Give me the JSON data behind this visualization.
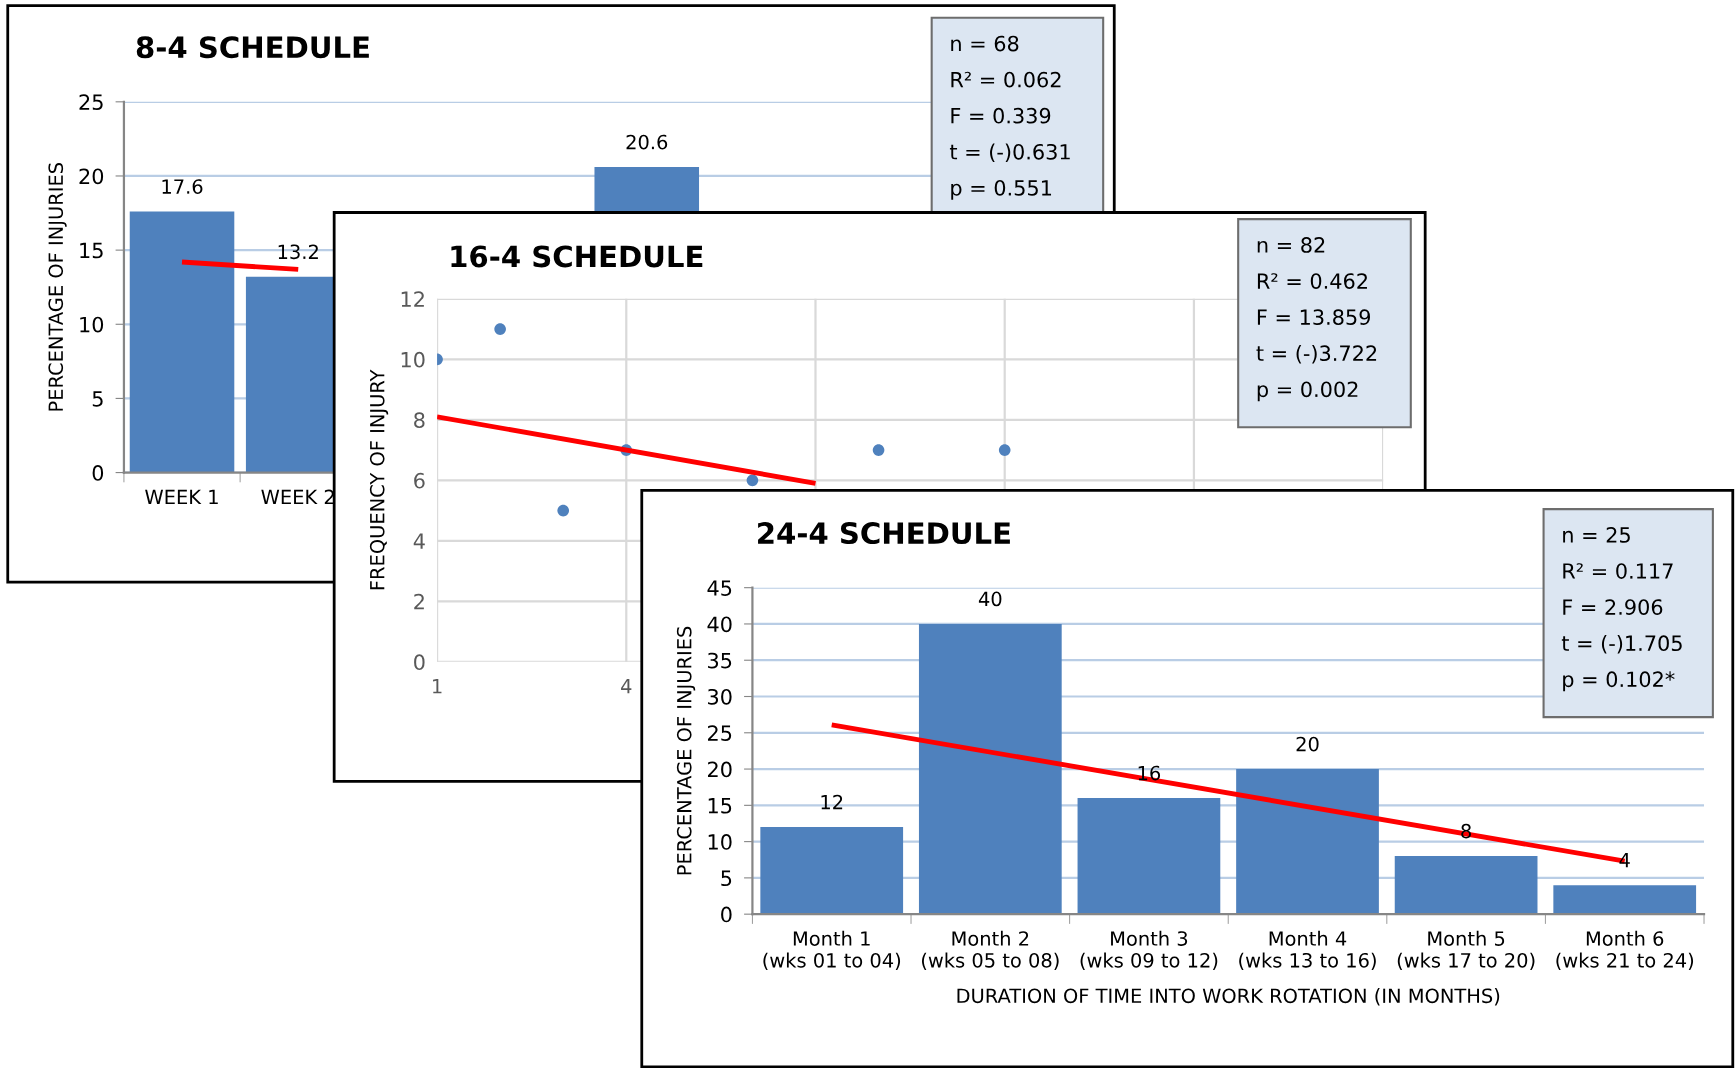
{
  "chart_data": [
    {
      "type": "bar",
      "title": "8-4 SCHEDULE",
      "ylabel": "PERCENTAGE OF INJURIES",
      "categories": [
        "WEEK 1",
        "WEEK 2",
        null,
        null,
        null,
        null,
        null,
        null
      ],
      "series": [
        {
          "type": "bar",
          "color": "#4f81bd",
          "values": [
            17.6,
            13.2,
            null,
            null,
            20.6,
            null,
            null,
            null
          ],
          "value_labels": [
            "17.6",
            "13.2",
            null,
            null,
            "20.6",
            null,
            null,
            null
          ]
        },
        {
          "type": "line",
          "color": "#ff0000",
          "x": [
            "WEEK 1",
            "WEEK 2"
          ],
          "values": [
            14.2,
            13.7
          ]
        }
      ],
      "ylim": [
        0,
        25
      ],
      "yticks": [
        0,
        5,
        10,
        15,
        20,
        25
      ],
      "grid": "y",
      "annotations": [
        "n = 68",
        "R² = 0.062",
        "F = 0.339",
        "t = (-)0.631",
        "p = 0.551"
      ]
    },
    {
      "type": "scatter",
      "title": "16-4 SCHEDULE",
      "ylabel": "FREQUENCY OF INJURY",
      "series": [
        {
          "type": "scatter",
          "color": "#4f81bd",
          "marker": "circle",
          "x": [
            1,
            2,
            3,
            4,
            6,
            8,
            10
          ],
          "values": [
            10,
            11,
            5,
            7,
            6,
            7,
            7
          ]
        },
        {
          "type": "line",
          "color": "#ff0000",
          "x": [
            1,
            7
          ],
          "values": [
            8.1,
            5.9
          ]
        }
      ],
      "xlim": [
        1,
        16
      ],
      "xticks": [
        1,
        4,
        {
          "value": 7,
          "label": null
        },
        {
          "value": 10,
          "label": null
        },
        {
          "value": 13,
          "label": null
        },
        {
          "value": 16,
          "label": null
        }
      ],
      "ylim": [
        0,
        12
      ],
      "yticks": [
        0,
        2,
        4,
        6,
        8,
        10,
        12
      ],
      "grid": true,
      "annotations": [
        "n = 82",
        "R² = 0.462",
        "F = 13.859",
        "t = (-)3.722",
        "p = 0.002"
      ]
    },
    {
      "type": "bar",
      "title": "24-4 SCHEDULE",
      "ylabel": "PERCENTAGE OF INJURIES",
      "xlabel": "DURATION OF TIME INTO WORK ROTATION (IN MONTHS)",
      "categories": [
        "Month 1\n(wks 01 to 04)",
        "Month 2\n(wks 05 to 08)",
        "Month 3\n(wks 09 to 12)",
        "Month 4\n(wks 13 to 16)",
        "Month 5\n(wks 17 to 20)",
        "Month 6\n(wks 21 to 24)"
      ],
      "series": [
        {
          "type": "bar",
          "color": "#4f81bd",
          "values": [
            12,
            40,
            16,
            20,
            8,
            4
          ],
          "value_labels": [
            "12",
            "40",
            "16",
            "20",
            "8",
            "4"
          ]
        },
        {
          "type": "line",
          "color": "#ff0000",
          "x": [
            "Month 1\n(wks 01 to 04)",
            "Month 6\n(wks 21 to 24)"
          ],
          "values": [
            26.1,
            7.3
          ]
        }
      ],
      "ylim": [
        0,
        45
      ],
      "yticks": [
        0,
        5,
        10,
        15,
        20,
        25,
        30,
        35,
        40,
        45
      ],
      "grid": "y",
      "annotations": [
        "n = 25",
        "R² = 0.117",
        "F = 2.906",
        "t = (-)1.705",
        "p = 0.102*"
      ]
    }
  ]
}
